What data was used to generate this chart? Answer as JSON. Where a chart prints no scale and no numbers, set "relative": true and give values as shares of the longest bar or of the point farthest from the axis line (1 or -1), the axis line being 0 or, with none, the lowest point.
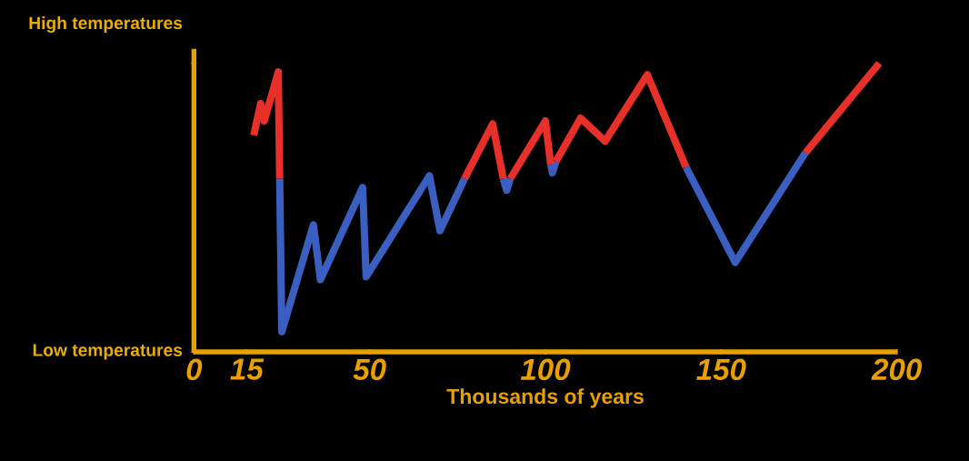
{
  "chart_data": {
    "type": "line",
    "relative": true,
    "xlabel": "Thousands of years",
    "xlim": [
      0,
      200
    ],
    "xticks": [
      0,
      15,
      50,
      100,
      150,
      200
    ],
    "annotations": [
      "High temperatures",
      "Low temperatures"
    ],
    "series": [
      {
        "color": "#3a5fc0",
        "x": [
          24.4,
          25,
          34,
          36,
          48,
          49,
          67,
          70,
          77,
          80,
          88,
          89,
          90,
          95,
          101.5,
          102,
          103,
          120,
          140,
          154,
          174
        ],
        "values": [
          0.6,
          0.07,
          0.44,
          0.25,
          0.57,
          0.26,
          0.61,
          0.42,
          0.6,
          null,
          0.6,
          0.56,
          0.6,
          null,
          0.65,
          0.62,
          0.66,
          null,
          0.64,
          0.31,
          0.69
        ]
      },
      {
        "color": "#e8302a",
        "x": [
          17,
          19,
          20,
          24,
          24.4,
          50,
          77,
          85,
          88,
          88.5,
          90,
          100,
          101.5,
          102,
          103,
          110,
          117,
          129,
          140,
          150,
          174,
          195
        ],
        "values": [
          0.75,
          0.86,
          0.8,
          0.97,
          0.6,
          null,
          0.6,
          0.79,
          0.6,
          null,
          0.6,
          0.8,
          0.65,
          null,
          0.66,
          0.81,
          0.73,
          0.96,
          0.64,
          null,
          0.69,
          1
        ]
      }
    ]
  }
}
